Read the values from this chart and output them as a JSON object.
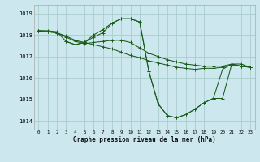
{
  "title": "Graphe pression niveau de la mer (hPa)",
  "background_color": "#cce8ee",
  "grid_color": "#aacccc",
  "line_color": "#1a5c1a",
  "xlim": [
    -0.5,
    23.5
  ],
  "ylim": [
    1013.6,
    1019.4
  ],
  "yticks": [
    1014,
    1015,
    1016,
    1017,
    1018,
    1019
  ],
  "xticks": [
    0,
    1,
    2,
    3,
    4,
    5,
    6,
    7,
    8,
    9,
    10,
    11,
    12,
    13,
    14,
    15,
    16,
    17,
    18,
    19,
    20,
    21,
    22,
    23
  ],
  "series": [
    {
      "x": [
        0,
        1,
        2,
        3,
        4,
        5,
        6,
        7,
        8,
        9,
        10,
        11,
        12,
        13,
        14,
        15,
        16,
        17,
        18,
        19,
        20,
        21,
        22,
        23
      ],
      "y": [
        1018.2,
        1018.2,
        1018.15,
        1017.7,
        1017.55,
        1017.65,
        1017.9,
        1018.1,
        1018.55,
        1018.75,
        1018.75,
        1018.6,
        1016.3,
        1014.8,
        1014.25,
        1014.15,
        1014.3,
        1014.55,
        1014.85,
        1015.05,
        1016.4,
        1016.65,
        1016.55,
        1016.5
      ]
    },
    {
      "x": [
        0,
        1,
        2,
        3,
        4,
        5,
        6,
        7,
        8,
        9,
        10,
        11,
        12,
        13,
        14,
        15,
        16,
        17,
        18,
        19,
        20,
        21,
        22,
        23
      ],
      "y": [
        1018.2,
        1018.15,
        1018.1,
        1017.95,
        1017.75,
        1017.65,
        1017.55,
        1017.45,
        1017.35,
        1017.2,
        1017.05,
        1016.95,
        1016.8,
        1016.7,
        1016.6,
        1016.5,
        1016.45,
        1016.4,
        1016.45,
        1016.45,
        1016.5,
        1016.6,
        1016.55,
        1016.5
      ]
    },
    {
      "x": [
        0,
        1,
        2,
        3,
        4,
        5,
        6,
        7,
        8,
        9,
        10,
        11,
        12,
        13,
        14,
        15,
        16,
        17,
        18,
        19,
        20,
        21,
        22,
        23
      ],
      "y": [
        1018.2,
        1018.15,
        1018.1,
        1017.9,
        1017.7,
        1017.6,
        1017.65,
        1017.7,
        1017.75,
        1017.75,
        1017.65,
        1017.4,
        1017.15,
        1017.0,
        1016.85,
        1016.75,
        1016.65,
        1016.6,
        1016.55,
        1016.55,
        1016.55,
        1016.65,
        1016.55,
        1016.5
      ]
    },
    {
      "x": [
        3,
        4,
        5,
        6,
        7,
        8,
        9,
        10,
        11,
        12,
        13,
        14,
        15,
        16,
        17,
        18,
        19,
        20,
        21,
        22,
        23
      ],
      "y": [
        1017.7,
        1017.55,
        1017.65,
        1018.0,
        1018.25,
        1018.55,
        1018.75,
        1018.75,
        1018.6,
        1016.3,
        1014.8,
        1014.25,
        1014.15,
        1014.3,
        1014.55,
        1014.85,
        1015.05,
        1015.05,
        1016.65,
        1016.65,
        1016.5
      ]
    }
  ]
}
